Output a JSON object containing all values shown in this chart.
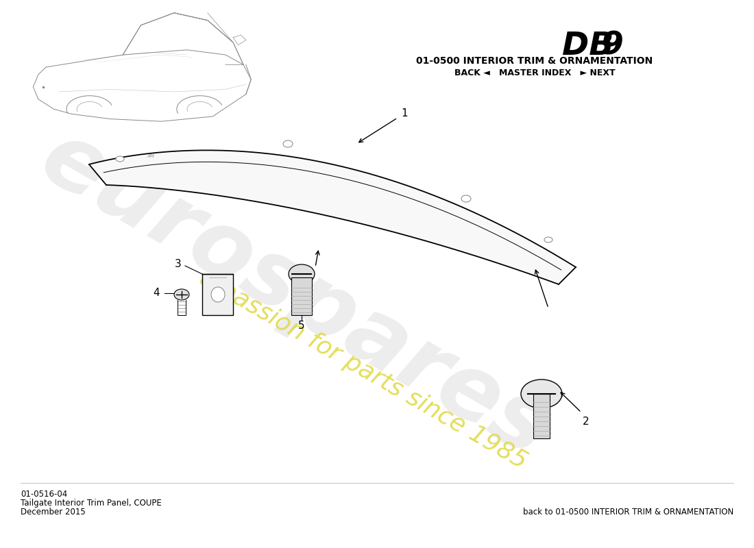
{
  "title_model": "DB 9",
  "title_section": "01-0500 INTERIOR TRIM & ORNAMENTATION",
  "title_nav": "BACK ◄   MASTER INDEX   ► NEXT",
  "part_number": "01-0516-04",
  "part_name": "Tailgate Interior Trim Panel, COUPE",
  "date": "December 2015",
  "back_link": "back to 01-0500 INTERIOR TRIM & ORNAMENTATION",
  "watermark_line1": "eurospares",
  "watermark_line2": "a passion for parts since 1985",
  "bg_color": "#ffffff",
  "text_color": "#1a1a1a",
  "watermark_color_main": "#cccccc",
  "watermark_color_text": "#e0d840"
}
